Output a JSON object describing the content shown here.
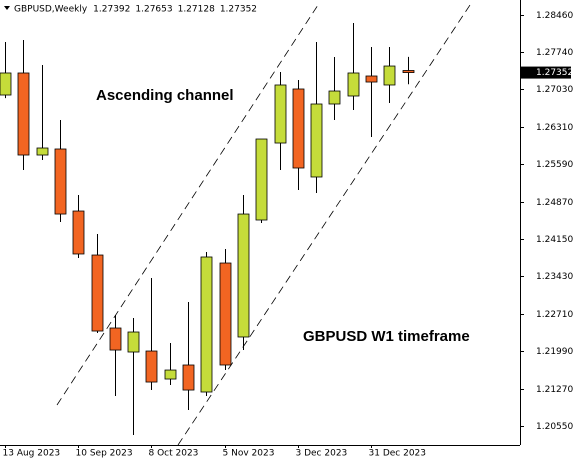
{
  "chart_data": {
    "type": "candlestick",
    "title": "GBPUSD,Weekly",
    "annotations": [
      "Ascending channel",
      "GBPUSD W1 timeframe"
    ],
    "categories": [
      "13 Aug 2023",
      null,
      null,
      null,
      "10 Sep 2023",
      null,
      null,
      null,
      "8 Oct 2023",
      null,
      null,
      null,
      "5 Nov 2023",
      null,
      null,
      null,
      "3 Dec 2023",
      null,
      null,
      null,
      "31 Dec 2023",
      null,
      null
    ],
    "open": [
      1.2692,
      1.27344,
      1.25765,
      1.25881,
      1.24687,
      1.2384,
      1.22435,
      1.21973,
      1.21992,
      1.21453,
      1.21723,
      1.21203,
      1.23686,
      1.22262,
      1.24514,
      1.25996,
      1.27036,
      1.25342,
      1.26747,
      1.26901,
      1.27286,
      1.27113,
      1.27392
    ],
    "high": [
      1.2794,
      1.27979,
      1.27498,
      1.26439,
      1.24995,
      1.24244,
      1.22685,
      1.22627,
      1.23397,
      1.22146,
      1.22935,
      1.23898,
      1.23956,
      1.24995,
      1.26073,
      1.27363,
      1.27209,
      1.2794,
      1.27652,
      1.28306,
      1.27844,
      1.27844,
      1.27653
    ],
    "low": [
      1.2686,
      1.25476,
      1.25669,
      1.24475,
      1.23782,
      1.22339,
      1.21127,
      1.20375,
      1.21241,
      1.21338,
      1.20856,
      1.21127,
      1.21626,
      1.22011,
      1.24456,
      1.25476,
      1.25091,
      1.25034,
      1.26439,
      1.26631,
      1.26112,
      1.26766,
      1.27128
    ],
    "close": [
      1.27344,
      1.25765,
      1.259,
      1.24629,
      1.2386,
      1.22377,
      1.22011,
      1.22358,
      1.21395,
      1.21626,
      1.21241,
      1.23802,
      1.21723,
      1.24629,
      1.26073,
      1.27113,
      1.25515,
      1.26747,
      1.26997,
      1.27344,
      1.2717,
      1.27478,
      1.27352
    ],
    "up_color": "#c5dc3a",
    "down_color": "#f26522",
    "ylim": [
      1.20183,
      1.28749
    ],
    "yticks": [
      {
        "value": 1.2846,
        "label": "1.28460"
      },
      {
        "value": 1.2774,
        "label": "1.27740"
      },
      {
        "value": 1.2703,
        "label": "1.27030"
      },
      {
        "value": 1.2631,
        "label": "1.26310"
      },
      {
        "value": 1.2559,
        "label": "1.25590"
      },
      {
        "value": 1.2487,
        "label": "1.24870"
      },
      {
        "value": 1.2415,
        "label": "1.24150"
      },
      {
        "value": 1.2343,
        "label": "1.23430"
      },
      {
        "value": 1.2271,
        "label": "1.22710"
      },
      {
        "value": 1.2199,
        "label": "1.21990"
      },
      {
        "value": 1.2127,
        "label": "1.21270"
      },
      {
        "value": 1.2055,
        "label": "1.20550"
      }
    ]
  }
}
